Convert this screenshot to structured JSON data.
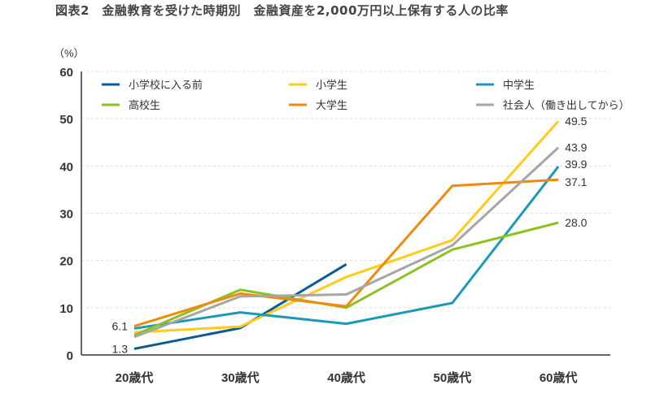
{
  "chart_data": {
    "type": "line",
    "title": "図表2　金融教育を受けた時期別　金融資産を2,000万円以上保有する人の比率",
    "ylabel": "（%）",
    "categories": [
      "20歳代",
      "30歳代",
      "40歳代",
      "50歳代",
      "60歳代"
    ],
    "ylim": [
      0,
      60
    ],
    "yticks": [
      0,
      10,
      20,
      30,
      40,
      50,
      60
    ],
    "grid": true,
    "legend": "top-left",
    "series": [
      {
        "name": "小学校に入る前",
        "color": "#0d5a94",
        "values": [
          1.3,
          5.7,
          19.2,
          null,
          null
        ]
      },
      {
        "name": "小学生",
        "color": "#ffcc1a",
        "values": [
          4.8,
          6.0,
          16.5,
          24.3,
          49.5
        ]
      },
      {
        "name": "中学生",
        "color": "#1a9ab8",
        "values": [
          5.6,
          9.0,
          6.6,
          11.0,
          39.9
        ]
      },
      {
        "name": "高校生",
        "color": "#8cc21f",
        "values": [
          4.2,
          13.8,
          10.0,
          22.3,
          28.0
        ]
      },
      {
        "name": "大学生",
        "color": "#f08a0c",
        "values": [
          6.1,
          13.0,
          10.3,
          35.8,
          37.1
        ]
      },
      {
        "name": "社会人（働き出してから）",
        "color": "#a6a6a6",
        "values": [
          3.8,
          12.4,
          12.8,
          23.2,
          43.9
        ]
      }
    ],
    "annotations": [
      {
        "text": "6.1",
        "category": "20歳代",
        "value": 6.1
      },
      {
        "text": "1.3",
        "category": "20歳代",
        "value": 1.3
      },
      {
        "text": "49.5",
        "category": "60歳代",
        "value": 49.5
      },
      {
        "text": "43.9",
        "category": "60歳代",
        "value": 43.9
      },
      {
        "text": "39.9",
        "category": "60歳代",
        "value": 39.9
      },
      {
        "text": "37.1",
        "category": "60歳代",
        "value": 37.1
      },
      {
        "text": "28.0",
        "category": "60歳代",
        "value": 28.0
      }
    ]
  }
}
